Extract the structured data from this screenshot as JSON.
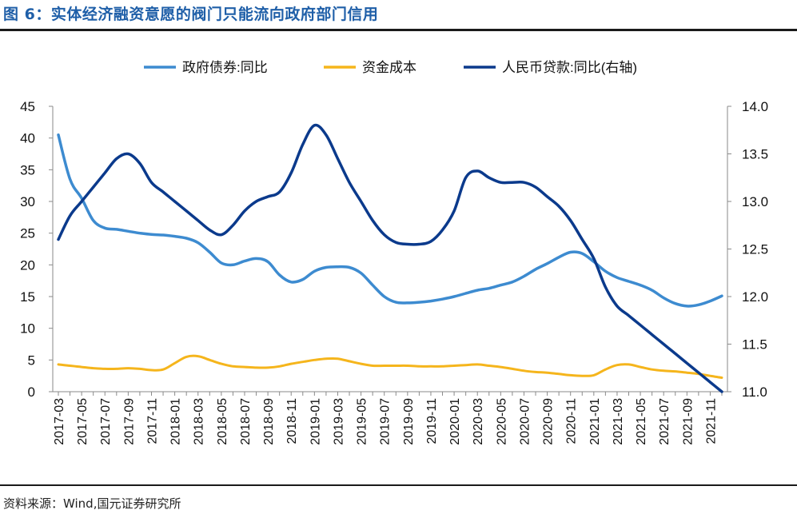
{
  "figure_title": "图 6：实体经济融资意愿的阀门只能流向政府部门信用",
  "source": "资料来源：Wind,国元证券研究所",
  "colors": {
    "title": "#1f5fa8",
    "gov_bond": "#3d8bd0",
    "funding_cost": "#f5b51c",
    "rmb_loan": "#0b3a8c"
  },
  "chart_data": {
    "type": "line",
    "legend_position": "top",
    "grid": false,
    "x": [
      "2017-03",
      "2017-04",
      "2017-05",
      "2017-06",
      "2017-07",
      "2017-08",
      "2017-09",
      "2017-10",
      "2017-11",
      "2017-12",
      "2018-01",
      "2018-02",
      "2018-03",
      "2018-04",
      "2018-05",
      "2018-06",
      "2018-07",
      "2018-08",
      "2018-09",
      "2018-10",
      "2018-11",
      "2018-12",
      "2019-01",
      "2019-02",
      "2019-03",
      "2019-04",
      "2019-05",
      "2019-06",
      "2019-07",
      "2019-08",
      "2019-09",
      "2019-10",
      "2019-11",
      "2019-12",
      "2020-01",
      "2020-02",
      "2020-03",
      "2020-04",
      "2020-05",
      "2020-06",
      "2020-07",
      "2020-08",
      "2020-09",
      "2020-10",
      "2020-11",
      "2020-12",
      "2021-01",
      "2021-02",
      "2021-03",
      "2021-04",
      "2021-05",
      "2021-06",
      "2021-07",
      "2021-08",
      "2021-09",
      "2021-10",
      "2021-11",
      "2021-12"
    ],
    "x_tick_labels": [
      "2017-03",
      "2017-05",
      "2017-07",
      "2017-09",
      "2017-11",
      "2018-01",
      "2018-03",
      "2018-05",
      "2018-07",
      "2018-09",
      "2018-11",
      "2019-01",
      "2019-03",
      "2019-05",
      "2019-07",
      "2019-09",
      "2019-11",
      "2020-01",
      "2020-03",
      "2020-05",
      "2020-07",
      "2020-09",
      "2020-11",
      "2021-01",
      "2021-03",
      "2021-05",
      "2021-07",
      "2021-09",
      "2021-11"
    ],
    "y_left": {
      "min": 0,
      "max": 45,
      "ticks": [
        0,
        5,
        10,
        15,
        20,
        25,
        30,
        35,
        40,
        45
      ]
    },
    "y_right": {
      "min": 11.0,
      "max": 14.0,
      "ticks": [
        "11.0",
        "11.5",
        "12.0",
        "12.5",
        "13.0",
        "13.5",
        "14.0"
      ]
    },
    "series": [
      {
        "name": "政府债券:同比",
        "axis": "left",
        "color": "#3d8bd0",
        "values": [
          40.5,
          33.5,
          30.5,
          27.0,
          25.8,
          25.6,
          25.3,
          25.0,
          24.8,
          24.7,
          24.5,
          24.2,
          23.5,
          22.0,
          20.3,
          20.0,
          20.6,
          21.0,
          20.5,
          18.4,
          17.3,
          17.7,
          19.0,
          19.6,
          19.7,
          19.6,
          18.7,
          16.8,
          15.0,
          14.1,
          14.0,
          14.1,
          14.3,
          14.6,
          15.0,
          15.5,
          16.0,
          16.3,
          16.8,
          17.3,
          18.2,
          19.3,
          20.2,
          21.2,
          22.0,
          21.8,
          20.5,
          19.0,
          18.0,
          17.4,
          16.8,
          16.0,
          14.8,
          13.9,
          13.5,
          13.7,
          14.3,
          15.1
        ]
      },
      {
        "name": "资金成本",
        "axis": "left",
        "color": "#f5b51c",
        "values": [
          4.3,
          4.1,
          3.9,
          3.7,
          3.6,
          3.6,
          3.7,
          3.6,
          3.4,
          3.5,
          4.5,
          5.5,
          5.6,
          5.0,
          4.4,
          4.0,
          3.9,
          3.8,
          3.8,
          4.0,
          4.4,
          4.7,
          5.0,
          5.2,
          5.2,
          4.8,
          4.4,
          4.1,
          4.1,
          4.1,
          4.1,
          4.0,
          4.0,
          4.0,
          4.1,
          4.2,
          4.3,
          4.1,
          3.9,
          3.6,
          3.3,
          3.1,
          3.0,
          2.8,
          2.6,
          2.5,
          2.6,
          3.5,
          4.2,
          4.3,
          3.9,
          3.5,
          3.3,
          3.2,
          3.0,
          2.8,
          2.5,
          2.2
        ]
      },
      {
        "name": "人民币贷款:同比(右轴)",
        "axis": "right",
        "color": "#0b3a8c",
        "values": [
          12.6,
          12.85,
          13.0,
          13.15,
          13.3,
          13.45,
          13.5,
          13.4,
          13.2,
          13.1,
          13.0,
          12.9,
          12.8,
          12.7,
          12.65,
          12.75,
          12.9,
          13.0,
          13.05,
          13.1,
          13.3,
          13.6,
          13.8,
          13.7,
          13.45,
          13.2,
          13.0,
          12.8,
          12.65,
          12.57,
          12.55,
          12.55,
          12.58,
          12.7,
          12.9,
          13.25,
          13.32,
          13.25,
          13.2,
          13.2,
          13.2,
          13.15,
          13.05,
          12.95,
          12.8,
          12.6,
          12.4,
          12.1,
          11.9,
          11.8,
          11.7,
          11.6,
          11.5,
          11.4,
          11.3,
          11.2,
          11.1,
          11.0
        ]
      }
    ]
  }
}
